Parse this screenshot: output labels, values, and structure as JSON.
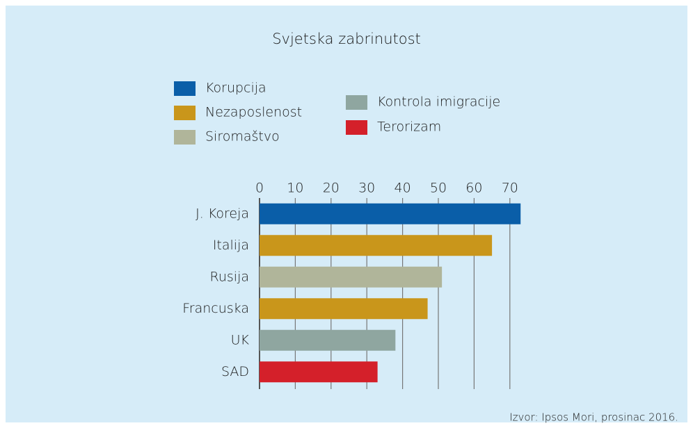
{
  "chart_data": {
    "type": "bar",
    "orientation": "horizontal",
    "title": "Svjetska zabrinutost",
    "source": "Izvor: Ipsos Mori, prosinac 2016.",
    "categories": [
      "J. Koreja",
      "Italija",
      "Rusija",
      "Francuska",
      "UK",
      "SAD"
    ],
    "series": [
      {
        "name": "Korupcija",
        "color": "#0a5ea8",
        "values": [
          73,
          null,
          null,
          null,
          null,
          null
        ]
      },
      {
        "name": "Nezaposlenost",
        "color": "#c9961b",
        "values": [
          null,
          65,
          null,
          47,
          null,
          null
        ]
      },
      {
        "name": "Siromaštvo",
        "color": "#b0b59a",
        "values": [
          null,
          null,
          51,
          null,
          null,
          null
        ]
      },
      {
        "name": "Kontrola imigracije",
        "color": "#8fa6a0",
        "values": [
          null,
          null,
          null,
          null,
          38,
          null
        ]
      },
      {
        "name": "Terorizam",
        "color": "#d4202a",
        "values": [
          null,
          null,
          null,
          null,
          null,
          33
        ]
      }
    ],
    "xlim": [
      0,
      75
    ],
    "xticks": [
      0,
      10,
      20,
      30,
      40,
      50,
      60,
      70
    ],
    "grid": true
  }
}
